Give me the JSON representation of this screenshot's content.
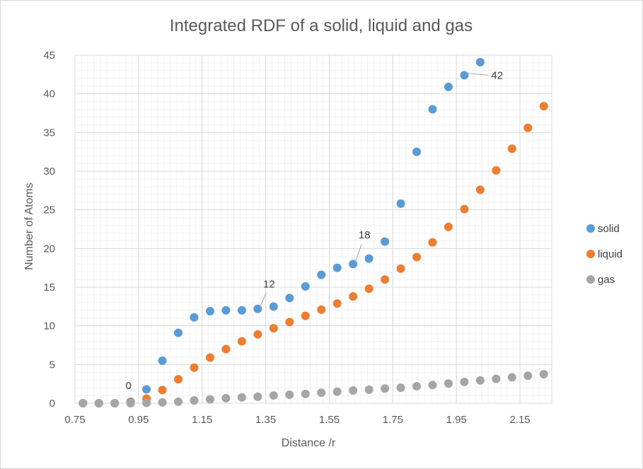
{
  "chart_data": {
    "type": "scatter",
    "title": "Integrated RDF of a solid, liquid and gas",
    "xlabel": "Distance /r",
    "ylabel": "Number of Atoms",
    "xlim": [
      0.75,
      2.25
    ],
    "ylim": [
      0,
      45
    ],
    "x_ticks": [
      "0.75",
      "0.95",
      "1.15",
      "1.35",
      "1.55",
      "1.75",
      "1.95",
      "2.15"
    ],
    "y_ticks": [
      "0",
      "5",
      "10",
      "15",
      "20",
      "25",
      "30",
      "35",
      "40",
      "45"
    ],
    "grid": "major and minor",
    "legend_position": "right",
    "colors": {
      "solid": "#5b9bd5",
      "liquid": "#ed7d31",
      "gas": "#a5a5a5"
    },
    "series": [
      {
        "name": "solid",
        "x": [
          0.775,
          0.825,
          0.875,
          0.925,
          0.975,
          1.025,
          1.075,
          1.125,
          1.175,
          1.225,
          1.275,
          1.325,
          1.375,
          1.425,
          1.475,
          1.525,
          1.575,
          1.625,
          1.675,
          1.725,
          1.775,
          1.825,
          1.875,
          1.925,
          1.975,
          2.025
        ],
        "y": [
          0,
          0,
          0,
          0.2,
          1.8,
          5.5,
          9.1,
          11.1,
          11.9,
          12.0,
          12.0,
          12.2,
          12.5,
          13.6,
          15.1,
          16.6,
          17.5,
          18.0,
          18.7,
          20.9,
          25.8,
          32.5,
          38.0,
          40.9,
          42.4,
          44.1
        ]
      },
      {
        "name": "liquid",
        "x": [
          0.775,
          0.825,
          0.875,
          0.925,
          0.975,
          1.025,
          1.075,
          1.125,
          1.175,
          1.225,
          1.275,
          1.325,
          1.375,
          1.425,
          1.475,
          1.525,
          1.575,
          1.625,
          1.675,
          1.725,
          1.775,
          1.825,
          1.875,
          1.925,
          1.975,
          2.025,
          2.075,
          2.125,
          2.175,
          2.225
        ],
        "y": [
          0,
          0,
          0,
          0.1,
          0.6,
          1.7,
          3.1,
          4.6,
          5.9,
          7.0,
          8.0,
          8.9,
          9.7,
          10.5,
          11.3,
          12.1,
          12.9,
          13.8,
          14.8,
          16.0,
          17.4,
          18.9,
          20.8,
          22.8,
          25.1,
          27.6,
          30.1,
          32.9,
          35.6,
          38.4
        ]
      },
      {
        "name": "gas",
        "x": [
          0.775,
          0.825,
          0.875,
          0.925,
          0.975,
          1.025,
          1.075,
          1.125,
          1.175,
          1.225,
          1.275,
          1.325,
          1.375,
          1.425,
          1.475,
          1.525,
          1.575,
          1.625,
          1.675,
          1.725,
          1.775,
          1.825,
          1.875,
          1.925,
          1.975,
          2.025,
          2.075,
          2.125,
          2.175,
          2.225
        ],
        "y": [
          0,
          0,
          0,
          0,
          0.05,
          0.1,
          0.2,
          0.35,
          0.5,
          0.65,
          0.75,
          0.85,
          1.0,
          1.1,
          1.2,
          1.35,
          1.5,
          1.65,
          1.75,
          1.9,
          2.0,
          2.2,
          2.35,
          2.55,
          2.75,
          2.95,
          3.15,
          3.35,
          3.55,
          3.75
        ]
      }
    ],
    "annotations": [
      {
        "text": "0",
        "series": "solid",
        "x": 0.925,
        "y": 0.2
      },
      {
        "text": "12",
        "series": "solid",
        "x": 1.325,
        "y": 12.2
      },
      {
        "text": "18",
        "series": "solid",
        "x": 1.625,
        "y": 18.0
      },
      {
        "text": "42",
        "series": "solid",
        "x": 1.975,
        "y": 42.4
      }
    ]
  }
}
